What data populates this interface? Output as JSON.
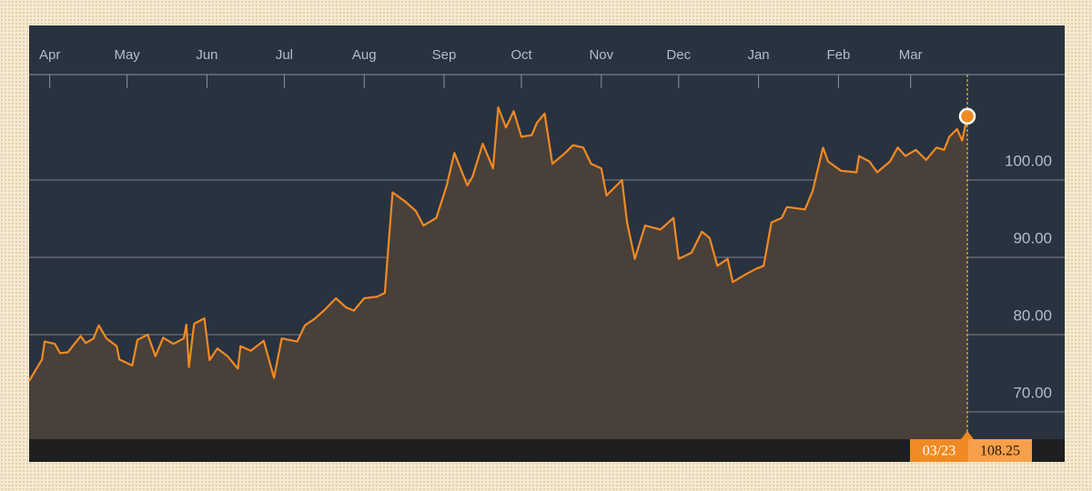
{
  "chart_data": {
    "type": "line",
    "color": "#f08a24",
    "area_color": "#4b413a",
    "x": [
      "03/24",
      "03/29",
      "03/30",
      "04/03",
      "04/05",
      "04/08",
      "04/13",
      "04/15",
      "04/18",
      "04/20",
      "04/23",
      "04/27",
      "04/28",
      "05/03",
      "05/05",
      "05/09",
      "05/12",
      "05/15",
      "05/19",
      "05/23",
      "05/24",
      "05/25",
      "05/27",
      "05/31",
      "06/02",
      "06/05",
      "06/09",
      "06/13",
      "06/14",
      "06/18",
      "06/23",
      "06/27",
      "06/30",
      "07/06",
      "07/09",
      "07/13",
      "07/17",
      "07/21",
      "07/25",
      "07/28",
      "08/01",
      "08/06",
      "08/09",
      "08/12",
      "08/17",
      "08/21",
      "08/24",
      "08/29",
      "09/02",
      "09/05",
      "09/10",
      "09/12",
      "09/16",
      "09/20",
      "09/22",
      "09/25",
      "09/28",
      "10/01",
      "10/05",
      "10/07",
      "10/10",
      "10/13",
      "10/18",
      "10/21",
      "10/25",
      "10/28",
      "11/01",
      "11/03",
      "11/09",
      "11/11",
      "11/14",
      "11/18",
      "11/24",
      "11/29",
      "12/01",
      "12/06",
      "12/10",
      "12/13",
      "12/16",
      "12/20",
      "12/22",
      "12/27",
      "12/31",
      "01/03",
      "01/06",
      "01/10",
      "01/12",
      "01/19",
      "01/22",
      "01/26",
      "01/28",
      "02/02",
      "02/08",
      "02/09",
      "02/13",
      "02/16",
      "02/21",
      "02/24",
      "02/27",
      "03/03",
      "03/07",
      "03/11",
      "03/14",
      "03/16",
      "03/19",
      "03/21",
      "03/23"
    ],
    "values": [
      74.0,
      76.8,
      79.1,
      78.8,
      77.6,
      77.7,
      79.8,
      78.9,
      79.5,
      81.2,
      79.5,
      78.5,
      76.8,
      76.0,
      79.3,
      80.0,
      77.2,
      79.6,
      78.8,
      79.5,
      81.3,
      75.8,
      81.4,
      82.1,
      76.7,
      78.2,
      77.2,
      75.6,
      78.5,
      77.9,
      79.2,
      74.4,
      79.5,
      79.1,
      81.2,
      82.1,
      83.3,
      84.7,
      83.5,
      83.1,
      84.7,
      84.9,
      85.4,
      98.4,
      97.2,
      96.0,
      94.1,
      95.1,
      99.3,
      103.5,
      99.3,
      100.4,
      104.7,
      101.5,
      109.4,
      106.8,
      108.9,
      105.6,
      105.8,
      107.4,
      108.6,
      102.1,
      103.5,
      104.5,
      104.2,
      102.1,
      101.5,
      98.0,
      100.0,
      94.5,
      89.8,
      94.1,
      93.6,
      95.1,
      89.8,
      90.6,
      93.3,
      92.5,
      88.9,
      89.8,
      86.8,
      87.8,
      88.5,
      88.9,
      94.5,
      95.1,
      96.5,
      96.2,
      98.6,
      104.2,
      102.4,
      101.2,
      101.0,
      103.1,
      102.4,
      101.0,
      102.4,
      104.2,
      103.1,
      103.9,
      102.6,
      104.2,
      103.9,
      105.6,
      106.6,
      105.1,
      108.25
    ],
    "xlim": [
      "03/24",
      "03/23"
    ],
    "xticks": [
      {
        "value": "04/01",
        "label": "Apr"
      },
      {
        "value": "05/01",
        "label": "May"
      },
      {
        "value": "06/01",
        "label": "Jun"
      },
      {
        "value": "07/01",
        "label": "Jul"
      },
      {
        "value": "08/01",
        "label": "Aug"
      },
      {
        "value": "09/01",
        "label": "Sep"
      },
      {
        "value": "10/01",
        "label": "Oct"
      },
      {
        "value": "11/01",
        "label": "Nov"
      },
      {
        "value": "12/01",
        "label": "Dec"
      },
      {
        "value": "01/01",
        "label": "Jan"
      },
      {
        "value": "02/01",
        "label": "Feb"
      },
      {
        "value": "03/01",
        "label": "Mar"
      }
    ],
    "ylim": [
      66.47,
      111.88
    ],
    "yticks": [
      {
        "value": 70,
        "label": "70.00"
      },
      {
        "value": 80,
        "label": "80.00"
      },
      {
        "value": 90,
        "label": "90.00"
      },
      {
        "value": 100,
        "label": "100.00"
      }
    ],
    "grid": true
  }
}
